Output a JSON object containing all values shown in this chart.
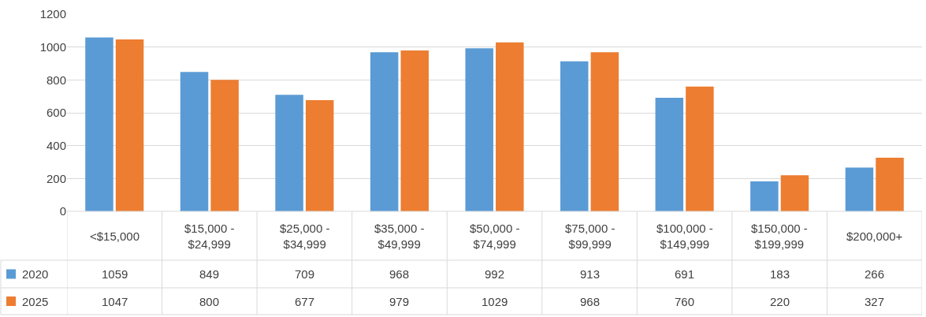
{
  "chart_data": {
    "type": "bar",
    "categories": [
      "<$15,000",
      "$15,000 - $24,999",
      "$25,000 - $34,999",
      "$35,000 - $49,999",
      "$50,000 - $74,999",
      "$75,000 - $99,999",
      "$100,000 - $149,999",
      "$150,000 - $199,999",
      "$200,000+"
    ],
    "series": [
      {
        "name": "2020",
        "color": "#5b9bd5",
        "values": [
          1059,
          849,
          709,
          968,
          992,
          913,
          691,
          183,
          266
        ]
      },
      {
        "name": "2025",
        "color": "#ed7d31",
        "values": [
          1047,
          800,
          677,
          979,
          1029,
          968,
          760,
          220,
          327
        ]
      }
    ],
    "ylim": [
      0,
      1200
    ],
    "yticks": [
      0,
      200,
      400,
      600,
      800,
      1000,
      1200
    ],
    "grid": "y",
    "data_labels": true,
    "legend": "bottom left"
  }
}
